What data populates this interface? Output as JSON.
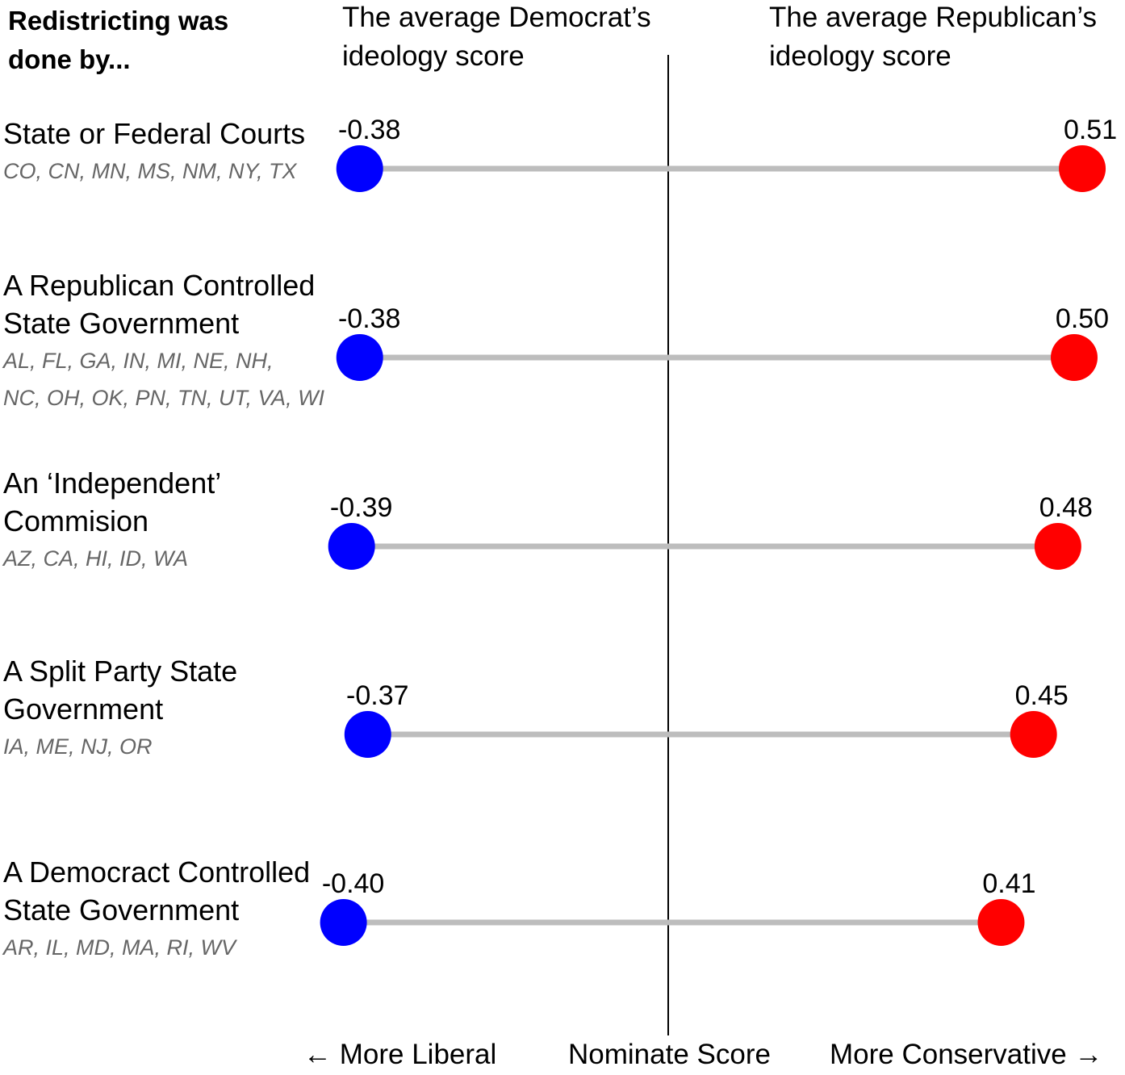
{
  "chart_data": {
    "type": "dumbbell",
    "title": "Redistricting was done by...",
    "column_headers": {
      "democrat": "The average Democrat’s ideology score",
      "republican": "The average Republican’s ideology score"
    },
    "rows": [
      {
        "category": "State or Federal Courts",
        "states": [
          "CO, CN, MN, MS, NM, NY, TX"
        ],
        "dem": -0.38,
        "rep": 0.51,
        "dem_label": "-0.38",
        "rep_label": "0.51"
      },
      {
        "category": "A Republican Controlled State Government",
        "states": [
          "AL, FL, GA, IN, MI, NE, NH,",
          "NC, OH, OK, PN, TN, UT, VA, WI"
        ],
        "dem": -0.38,
        "rep": 0.5,
        "dem_label": "-0.38",
        "rep_label": "0.50"
      },
      {
        "category": "An ‘Independent’ Commision",
        "states": [
          "AZ, CA, HI, ID, WA"
        ],
        "dem": -0.39,
        "rep": 0.48,
        "dem_label": "-0.39",
        "rep_label": "0.48"
      },
      {
        "category": "A Split Party State Government",
        "states": [
          "IA, ME, NJ, OR"
        ],
        "dem": -0.37,
        "rep": 0.45,
        "dem_label": "-0.37",
        "rep_label": "0.45"
      },
      {
        "category": "A Democract Controlled State Government",
        "states": [
          "AR, IL, MD, MA, RI, WV"
        ],
        "dem": -0.4,
        "rep": 0.41,
        "dem_label": "-0.40",
        "rep_label": "0.41"
      }
    ],
    "x_axis": {
      "label": "Nominate Score",
      "left_label": "More Liberal",
      "right_label": "More Conservative",
      "left_arrow": "←",
      "right_arrow": "→",
      "reference_line": 0
    },
    "colors": {
      "democrat": "#0000ff",
      "republican": "#ff0000",
      "connector": "#bdbdbd",
      "states_text": "#666666"
    }
  }
}
